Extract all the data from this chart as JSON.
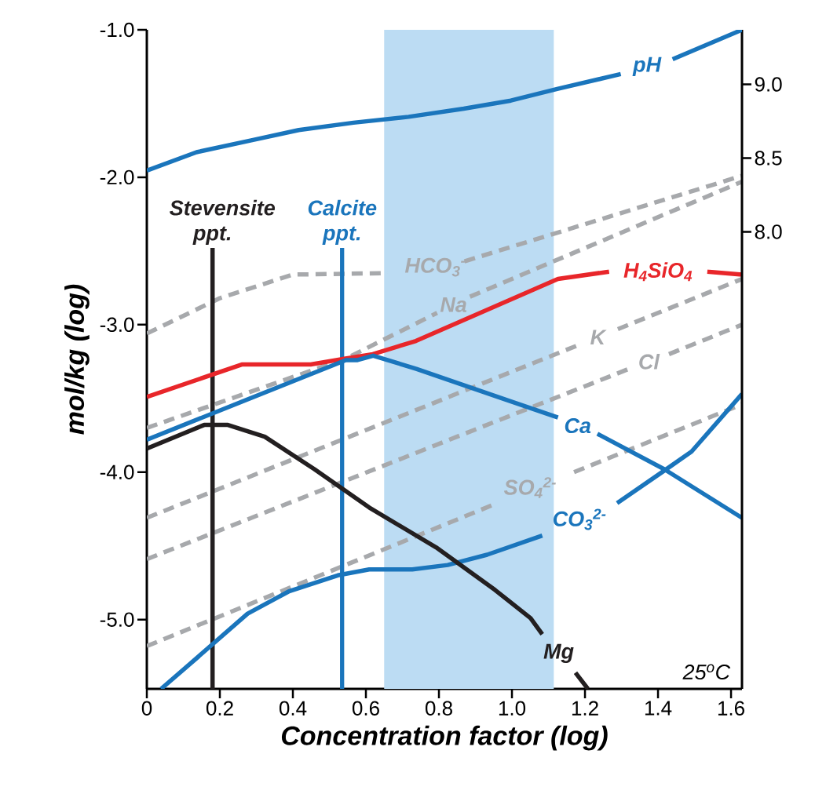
{
  "chart_data": {
    "type": "line",
    "xlabel": "Concentration factor (log)",
    "ylabel": "mol/kg (log)",
    "xlim": [
      0,
      1.63
    ],
    "ylim": [
      -5.47,
      -1.0
    ],
    "y2lim": [
      4.9,
      9.37
    ],
    "xticks": [
      0,
      0.2,
      0.4,
      0.6,
      0.8,
      {
        "value": 1.0,
        "label": "1.0"
      },
      1.2,
      1.4,
      1.6
    ],
    "yticks": [
      {
        "value": -5,
        "label": "-5.0"
      },
      {
        "value": -4,
        "label": "-4.0"
      },
      {
        "value": -3,
        "label": "-3.0"
      },
      {
        "value": -2,
        "label": "-2.0"
      },
      {
        "value": -1,
        "label": "-1.0"
      }
    ],
    "y2ticks": [
      {
        "value": 8,
        "label": "8.0"
      },
      8.5,
      {
        "value": 9,
        "label": "9.0"
      }
    ],
    "bands": [
      {
        "axis": "x",
        "from": 0.65,
        "to": 1.115,
        "color": "#bcdcf3"
      }
    ],
    "series": [
      {
        "name": "HCO$_{3}$$^{-}$",
        "color": "#a7a9ac",
        "line_style": "dashed",
        "x": [
          0,
          0.2,
          0.4,
          0.66,
          0.79,
          0.87,
          1.63
        ],
        "values": [
          -3.06,
          -2.82,
          -2.66,
          -2.65,
          null,
          -2.57,
          -1.99
        ]
      },
      {
        "name": "Na",
        "color": "#a7a9ac",
        "line_style": "dashed",
        "x": [
          0,
          0.545,
          0.795,
          0.84,
          0.885,
          1.63
        ],
        "values": [
          -3.7,
          -3.23,
          -2.92,
          null,
          -2.81,
          -2.03
        ]
      },
      {
        "name": "K",
        "color": "#a7a9ac",
        "line_style": "dashed",
        "x": [
          0,
          1.18,
          1.235,
          1.29,
          1.63
        ],
        "values": [
          -4.31,
          -3.14,
          null,
          -3.03,
          -2.69
        ]
      },
      {
        "name": "Cl",
        "color": "#a7a9ac",
        "line_style": "dashed",
        "x": [
          0,
          1.32,
          1.375,
          1.43,
          1.63
        ],
        "values": [
          -4.59,
          -3.3,
          null,
          -3.2,
          -3.0
        ]
      },
      {
        "name": "SO$_{4}$$^{2-}$",
        "color": "#a7a9ac",
        "line_style": "dashed",
        "x": [
          0,
          0.96,
          1.05,
          1.17,
          1.63
        ],
        "values": [
          -5.18,
          -4.21,
          null,
          -4.0,
          -3.54
        ]
      },
      {
        "name": "Stevensite ppt.",
        "color": "#231f20",
        "line_style": "solid",
        "x": [
          0.18,
          0.18
        ],
        "values": [
          -2.48,
          -5.47
        ]
      },
      {
        "name": "Calcite ppt.",
        "color": "#1a75bc",
        "line_style": "solid",
        "x": [
          0.535,
          0.535
        ],
        "values": [
          -2.48,
          -5.47
        ]
      },
      {
        "name": "H$_{4}$SiO$_{4}$",
        "color": "#e8262a",
        "line_style": "solid",
        "x": [
          0,
          0.26,
          0.449,
          0.544,
          0.619,
          0.737,
          1.126,
          1.266,
          1.4,
          1.535,
          1.63
        ],
        "values": [
          -3.49,
          -3.27,
          -3.27,
          -3.23,
          -3.2,
          -3.11,
          -2.69,
          -2.64,
          null,
          -2.64,
          -2.66
        ]
      },
      {
        "name": "Ca",
        "color": "#1a75bc",
        "line_style": "solid",
        "x": [
          0,
          0.545,
          0.577,
          0.62,
          0.738,
          1.126,
          1.18,
          1.234,
          1.417,
          1.63
        ],
        "values": [
          -3.78,
          -3.24,
          -3.24,
          -3.21,
          -3.3,
          -3.63,
          null,
          -3.74,
          -3.98,
          -4.31
        ]
      },
      {
        "name": "CO$_{3}$$^{2-}$",
        "color": "#1a75bc",
        "line_style": "solid",
        "x": [
          0.039,
          0.114,
          0.276,
          0.388,
          0.523,
          0.609,
          0.727,
          0.824,
          0.932,
          1.083,
          1.185,
          1.288,
          1.417,
          1.492,
          1.63
        ],
        "values": [
          -5.47,
          -5.31,
          -4.96,
          -4.81,
          -4.7,
          -4.66,
          -4.66,
          -4.63,
          -4.56,
          -4.43,
          null,
          -4.21,
          -3.99,
          -3.86,
          -3.47
        ]
      },
      {
        "name": "Mg",
        "color": "#231f20",
        "line_style": "solid",
        "x": [
          0,
          0.157,
          0.222,
          0.323,
          0.459,
          0.609,
          0.792,
          0.954,
          1.051,
          1.083,
          1.128,
          1.174,
          1.208
        ],
        "values": [
          -3.84,
          -3.68,
          -3.68,
          -3.76,
          -3.98,
          -4.24,
          -4.51,
          -4.8,
          -4.99,
          -5.1,
          null,
          -5.36,
          -5.47
        ]
      },
      {
        "name": "pH",
        "color": "#1a75bc",
        "line_style": "solid",
        "axis": "y2",
        "x": [
          0,
          0.136,
          0.286,
          0.416,
          0.566,
          0.717,
          0.868,
          0.997,
          1.126,
          1.298,
          1.37,
          1.44,
          1.63
        ],
        "values": [
          8.415,
          8.54,
          8.62,
          8.69,
          8.74,
          8.78,
          8.835,
          8.89,
          8.97,
          9.07,
          null,
          9.17,
          9.37
        ]
      }
    ],
    "annotations": [
      "25$^{o}$C"
    ]
  }
}
